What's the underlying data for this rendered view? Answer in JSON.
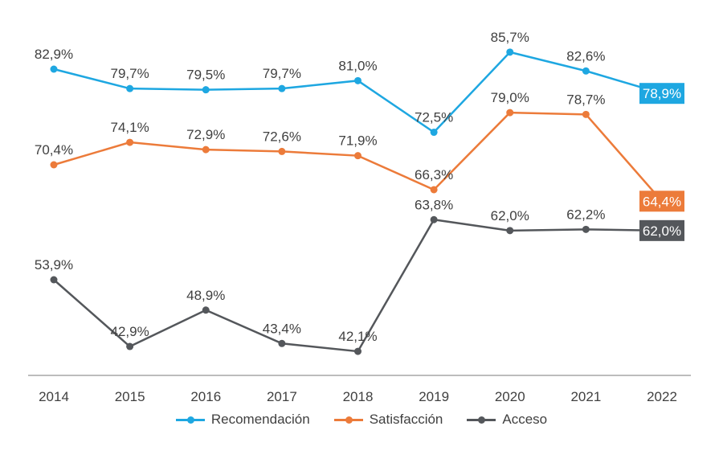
{
  "chart_data": {
    "type": "line",
    "title": "",
    "xlabel": "",
    "ylabel": "",
    "x": [
      "2014",
      "2015",
      "2016",
      "2017",
      "2018",
      "2019",
      "2020",
      "2021",
      "2022"
    ],
    "grid": false,
    "legend_position": "bottom-center",
    "value_format": "comma-decimal-percent",
    "series": [
      {
        "name": "Recomendación",
        "color": "#1ea7e1",
        "values": [
          82.9,
          79.7,
          79.5,
          79.7,
          81.0,
          72.5,
          85.7,
          82.6,
          78.9
        ],
        "labels": [
          "82,9%",
          "79,7%",
          "79,5%",
          "79,7%",
          "81,0%",
          "72,5%",
          "85,7%",
          "82,6%",
          "78,9%"
        ]
      },
      {
        "name": "Satisfacción",
        "color": "#ec7b3a",
        "values": [
          70.4,
          74.1,
          72.9,
          72.6,
          71.9,
          66.3,
          79.0,
          78.7,
          64.4
        ],
        "labels": [
          "70,4%",
          "74,1%",
          "72,9%",
          "72,6%",
          "71,9%",
          "66,3%",
          "79,0%",
          "78,7%",
          "64,4%"
        ]
      },
      {
        "name": "Acceso",
        "color": "#54575b",
        "values": [
          53.9,
          42.9,
          48.9,
          43.4,
          42.1,
          63.8,
          62.0,
          62.2,
          62.0
        ],
        "labels": [
          "53,9%",
          "42,9%",
          "48,9%",
          "43,4%",
          "42,1%",
          "63,8%",
          "62,0%",
          "62,2%",
          "62,0%"
        ]
      }
    ]
  },
  "legend": {
    "items": [
      "Recomendación",
      "Satisfacción",
      "Acceso"
    ]
  }
}
